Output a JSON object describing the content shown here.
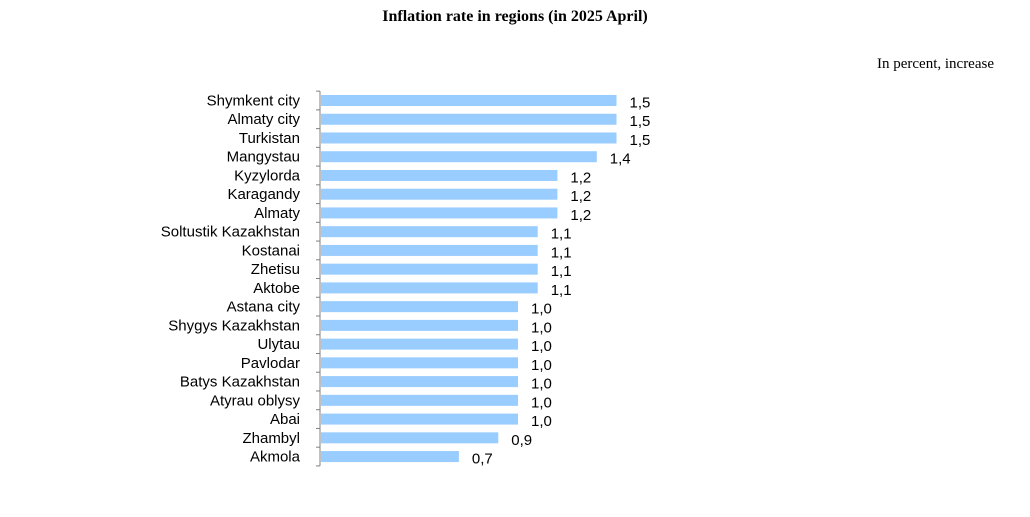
{
  "unit_note": "In percent, increase",
  "colors": {
    "bar": "#99CCFF",
    "axis": "#808080"
  },
  "chart_data": {
    "type": "bar",
    "orientation": "horizontal",
    "title": "Inflation rate in regions (in 2025 April)",
    "categories": [
      "Shymkent city",
      "Almaty city",
      "Turkistan",
      "Mangystau",
      "Kyzylorda",
      "Karagandy",
      "Almaty",
      "Soltustik Kazakhstan",
      "Kostanai",
      "Zhetisu",
      "Aktobe",
      "Astana city",
      "Shygys Kazakhstan",
      "Ulytau",
      "Pavlodar",
      "Batys Kazakhstan",
      "Atyrau oblysy",
      "Abai",
      "Zhambyl",
      "Akmola"
    ],
    "values": [
      1.5,
      1.5,
      1.5,
      1.4,
      1.2,
      1.2,
      1.2,
      1.1,
      1.1,
      1.1,
      1.1,
      1.0,
      1.0,
      1.0,
      1.0,
      1.0,
      1.0,
      1.0,
      0.9,
      0.7
    ],
    "value_labels": [
      "1,5",
      "1,5",
      "1,5",
      "1,4",
      "1,2",
      "1,2",
      "1,2",
      "1,1",
      "1,1",
      "1,1",
      "1,1",
      "1,0",
      "1,0",
      "1,0",
      "1,0",
      "1,0",
      "1,0",
      "1,0",
      "0,9",
      "0,7"
    ],
    "xlim": [
      0,
      1.5
    ],
    "grid": false,
    "legend": "none"
  }
}
